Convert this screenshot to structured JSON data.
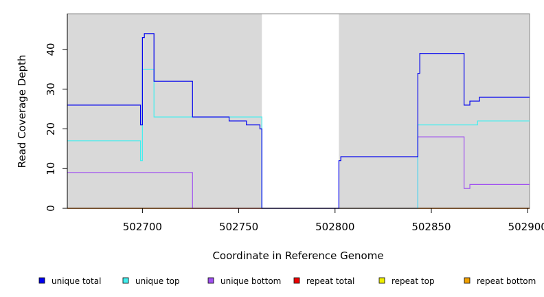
{
  "chart_data": {
    "type": "line",
    "step": true,
    "xlabel": "Coordinate in Reference Genome",
    "ylabel": "Read Coverage Depth",
    "xlim": [
      502661,
      502901
    ],
    "ylim": [
      0,
      49
    ],
    "x_ticks": [
      502700,
      502750,
      502800,
      502850,
      502900
    ],
    "x_tick_labels": [
      "502700",
      "502750",
      "502800",
      "502850",
      "502900"
    ],
    "y_ticks": [
      0,
      10,
      20,
      30,
      40
    ],
    "y_tick_labels": [
      "0",
      "10",
      "20",
      "30",
      "40"
    ],
    "background_color": "#d9d9d9",
    "uncovered_region": [
      502762,
      502802
    ],
    "legend_position": "bottom",
    "series": [
      {
        "name": "unique total",
        "color": "#0000ee",
        "points": [
          [
            502661,
            26
          ],
          [
            502699,
            26
          ],
          [
            502699,
            21
          ],
          [
            502700,
            21
          ],
          [
            502700,
            43
          ],
          [
            502701,
            43
          ],
          [
            502701,
            44
          ],
          [
            502706,
            44
          ],
          [
            502706,
            32
          ],
          [
            502726,
            32
          ],
          [
            502726,
            23
          ],
          [
            502745,
            23
          ],
          [
            502745,
            22
          ],
          [
            502754,
            22
          ],
          [
            502754,
            21
          ],
          [
            502761,
            21
          ],
          [
            502761,
            20
          ],
          [
            502762,
            20
          ],
          [
            502762,
            0
          ],
          [
            502802,
            0
          ],
          [
            502802,
            12
          ],
          [
            502803,
            12
          ],
          [
            502803,
            13
          ],
          [
            502843,
            13
          ],
          [
            502843,
            34
          ],
          [
            502844,
            34
          ],
          [
            502844,
            39
          ],
          [
            502867,
            39
          ],
          [
            502867,
            26
          ],
          [
            502870,
            26
          ],
          [
            502870,
            27
          ],
          [
            502875,
            27
          ],
          [
            502875,
            28
          ],
          [
            502901,
            28
          ]
        ]
      },
      {
        "name": "unique top",
        "color": "#44eeee",
        "points": [
          [
            502661,
            17
          ],
          [
            502699,
            17
          ],
          [
            502699,
            12
          ],
          [
            502700,
            12
          ],
          [
            502700,
            35
          ],
          [
            502706,
            35
          ],
          [
            502706,
            23
          ],
          [
            502726,
            23
          ],
          [
            502726,
            23
          ],
          [
            502762,
            23
          ],
          [
            502762,
            0
          ],
          [
            502843,
            0
          ],
          [
            502843,
            21
          ],
          [
            502874,
            21
          ],
          [
            502874,
            22
          ],
          [
            502901,
            22
          ]
        ]
      },
      {
        "name": "unique bottom",
        "color": "#a050f0",
        "points": [
          [
            502661,
            9
          ],
          [
            502726,
            9
          ],
          [
            502726,
            0
          ],
          [
            502843,
            0
          ],
          [
            502843,
            18
          ],
          [
            502867,
            18
          ],
          [
            502867,
            5
          ],
          [
            502870,
            5
          ],
          [
            502870,
            6
          ],
          [
            502901,
            6
          ]
        ]
      },
      {
        "name": "repeat total",
        "color": "#ee0000",
        "points": [
          [
            502661,
            0
          ],
          [
            502901,
            0
          ]
        ]
      },
      {
        "name": "repeat top",
        "color": "#eeee00",
        "points": [
          [
            502661,
            0
          ],
          [
            502901,
            0
          ]
        ]
      },
      {
        "name": "repeat bottom",
        "color": "#f0a000",
        "points": [
          [
            502661,
            0
          ],
          [
            502901,
            0
          ]
        ]
      }
    ]
  }
}
